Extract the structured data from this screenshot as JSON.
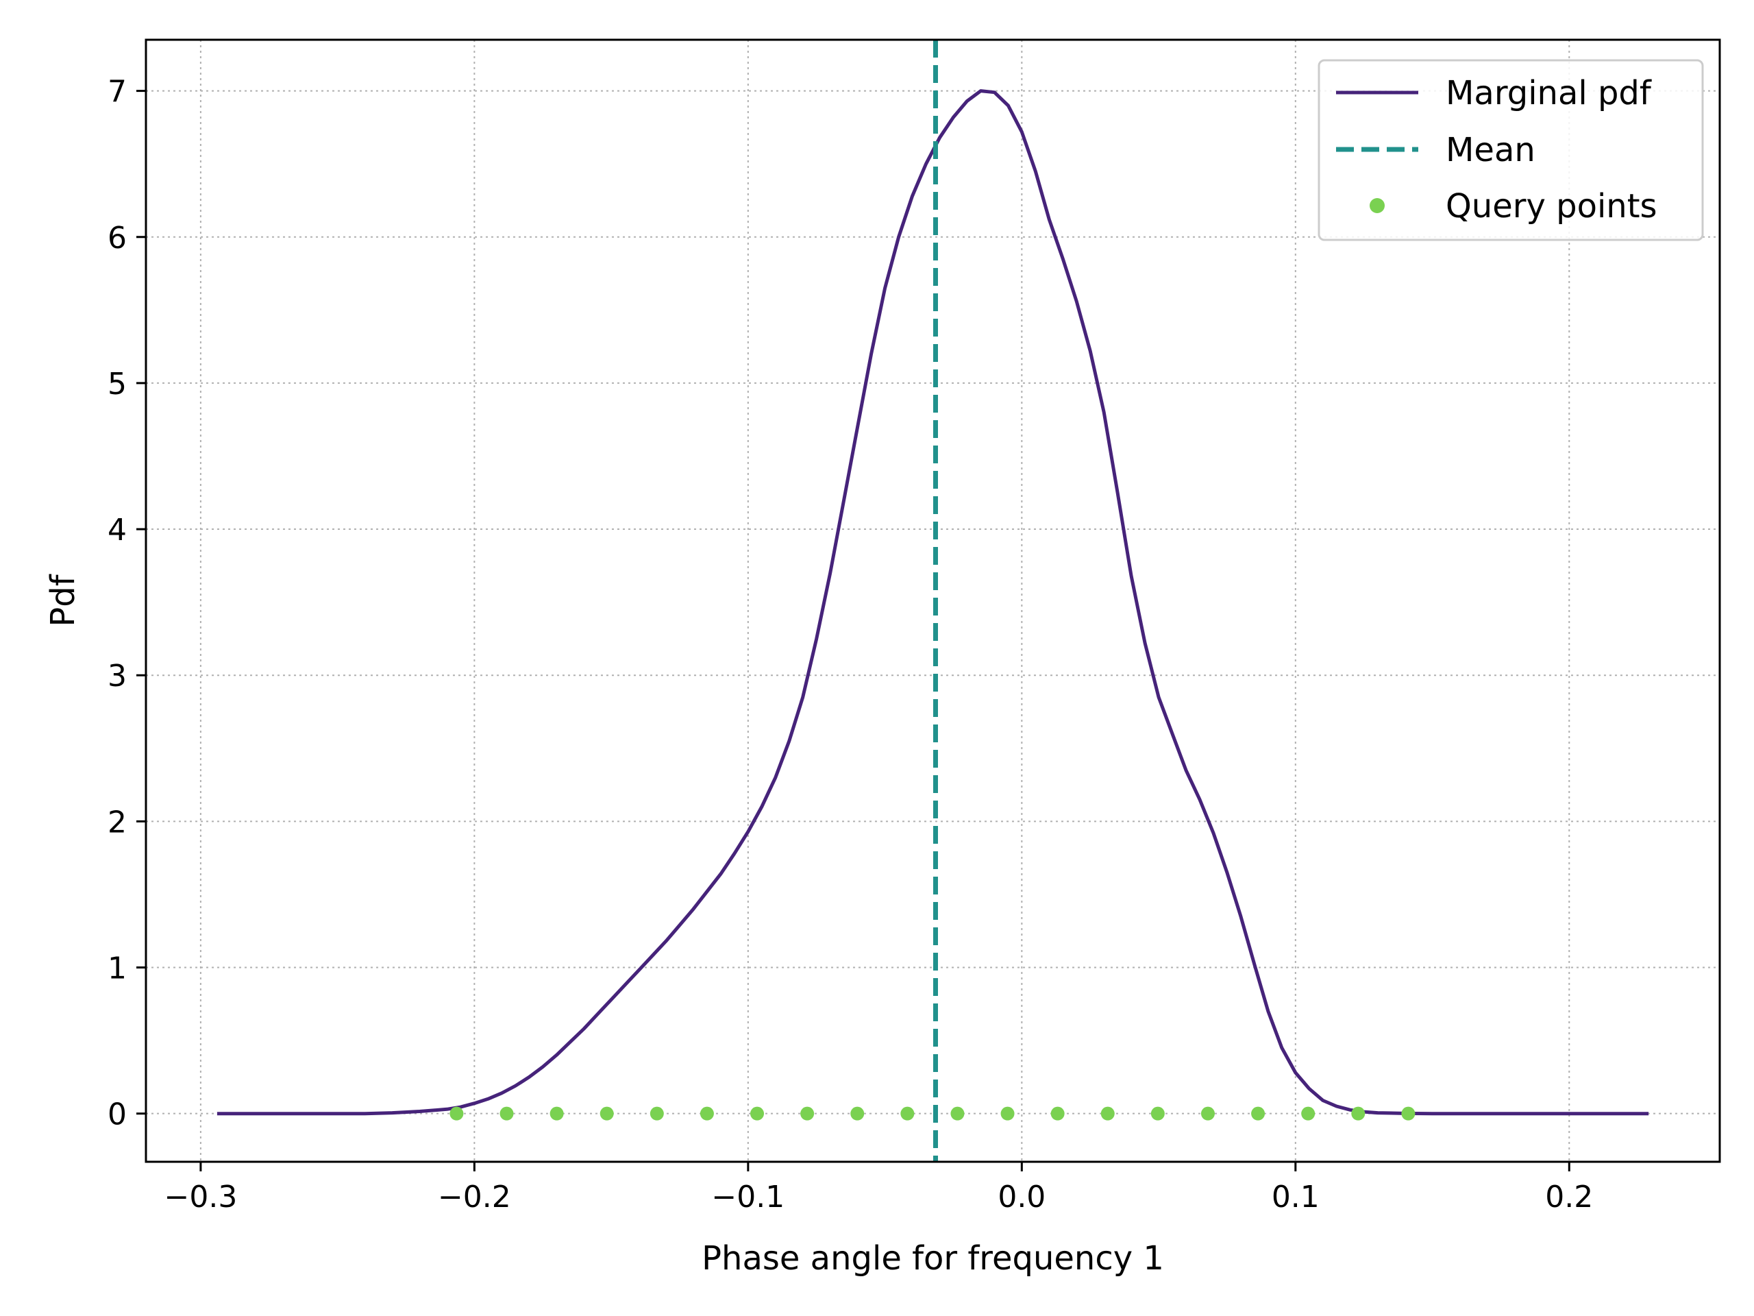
{
  "chart_data": {
    "type": "line",
    "xlabel": "Phase angle for frequency 1",
    "ylabel": "Pdf",
    "xlim": [
      -0.32,
      0.255
    ],
    "ylim": [
      -0.33,
      7.35
    ],
    "x_ticks": [
      -0.3,
      -0.2,
      -0.1,
      0.0,
      0.1,
      0.2
    ],
    "x_tick_labels": [
      "−0.3",
      "−0.2",
      "−0.1",
      "0.0",
      "0.1",
      "0.2"
    ],
    "y_ticks": [
      0,
      1,
      2,
      3,
      4,
      5,
      6,
      7
    ],
    "y_tick_labels": [
      "0",
      "1",
      "2",
      "3",
      "4",
      "5",
      "6",
      "7"
    ],
    "grid": true,
    "legend_position": "top-right",
    "colors": {
      "pdf": "#46237a",
      "mean": "#21918c",
      "query": "#7ad151",
      "grid": "#b0b0b0"
    },
    "series": [
      {
        "name": "Marginal pdf",
        "style": "solid",
        "x": [
          -0.294,
          -0.26,
          -0.24,
          -0.23,
          -0.22,
          -0.21,
          -0.205,
          -0.2,
          -0.195,
          -0.19,
          -0.185,
          -0.18,
          -0.175,
          -0.17,
          -0.165,
          -0.16,
          -0.155,
          -0.15,
          -0.145,
          -0.14,
          -0.135,
          -0.13,
          -0.125,
          -0.12,
          -0.115,
          -0.11,
          -0.105,
          -0.1,
          -0.095,
          -0.09,
          -0.085,
          -0.08,
          -0.075,
          -0.07,
          -0.065,
          -0.06,
          -0.055,
          -0.05,
          -0.045,
          -0.04,
          -0.035,
          -0.03,
          -0.025,
          -0.02,
          -0.015,
          -0.01,
          -0.005,
          0.0,
          0.005,
          0.01,
          0.015,
          0.02,
          0.025,
          0.03,
          0.035,
          0.04,
          0.045,
          0.05,
          0.055,
          0.06,
          0.065,
          0.07,
          0.075,
          0.08,
          0.085,
          0.09,
          0.095,
          0.1,
          0.105,
          0.11,
          0.115,
          0.12,
          0.125,
          0.13,
          0.14,
          0.15,
          0.17,
          0.2,
          0.229
        ],
        "y": [
          0.0,
          0.0,
          0.0,
          0.005,
          0.015,
          0.03,
          0.045,
          0.07,
          0.1,
          0.14,
          0.19,
          0.25,
          0.32,
          0.4,
          0.49,
          0.58,
          0.68,
          0.78,
          0.88,
          0.98,
          1.08,
          1.18,
          1.29,
          1.4,
          1.52,
          1.64,
          1.78,
          1.93,
          2.1,
          2.3,
          2.55,
          2.85,
          3.25,
          3.7,
          4.2,
          4.7,
          5.2,
          5.65,
          6.0,
          6.28,
          6.5,
          6.68,
          6.82,
          6.93,
          7.0,
          6.99,
          6.9,
          6.72,
          6.45,
          6.12,
          5.85,
          5.56,
          5.22,
          4.8,
          4.25,
          3.68,
          3.22,
          2.85,
          2.6,
          2.35,
          2.15,
          1.92,
          1.65,
          1.35,
          1.02,
          0.7,
          0.45,
          0.28,
          0.17,
          0.09,
          0.05,
          0.025,
          0.012,
          0.005,
          0.001,
          0.0,
          0.0,
          0.0,
          0.0
        ]
      },
      {
        "name": "Mean",
        "style": "dashed",
        "x_value": -0.0315
      },
      {
        "name": "Query points",
        "style": "markers",
        "x": [
          -0.2065,
          -0.1882,
          -0.1699,
          -0.1516,
          -0.1333,
          -0.115,
          -0.0967,
          -0.0784,
          -0.0601,
          -0.0418,
          -0.0235,
          -0.0052,
          0.0131,
          0.0314,
          0.0497,
          0.068,
          0.0863,
          0.1046,
          0.1229,
          0.1412
        ],
        "y": [
          0,
          0,
          0,
          0,
          0,
          0,
          0,
          0,
          0,
          0,
          0,
          0,
          0,
          0,
          0,
          0,
          0,
          0,
          0,
          0
        ]
      }
    ]
  }
}
